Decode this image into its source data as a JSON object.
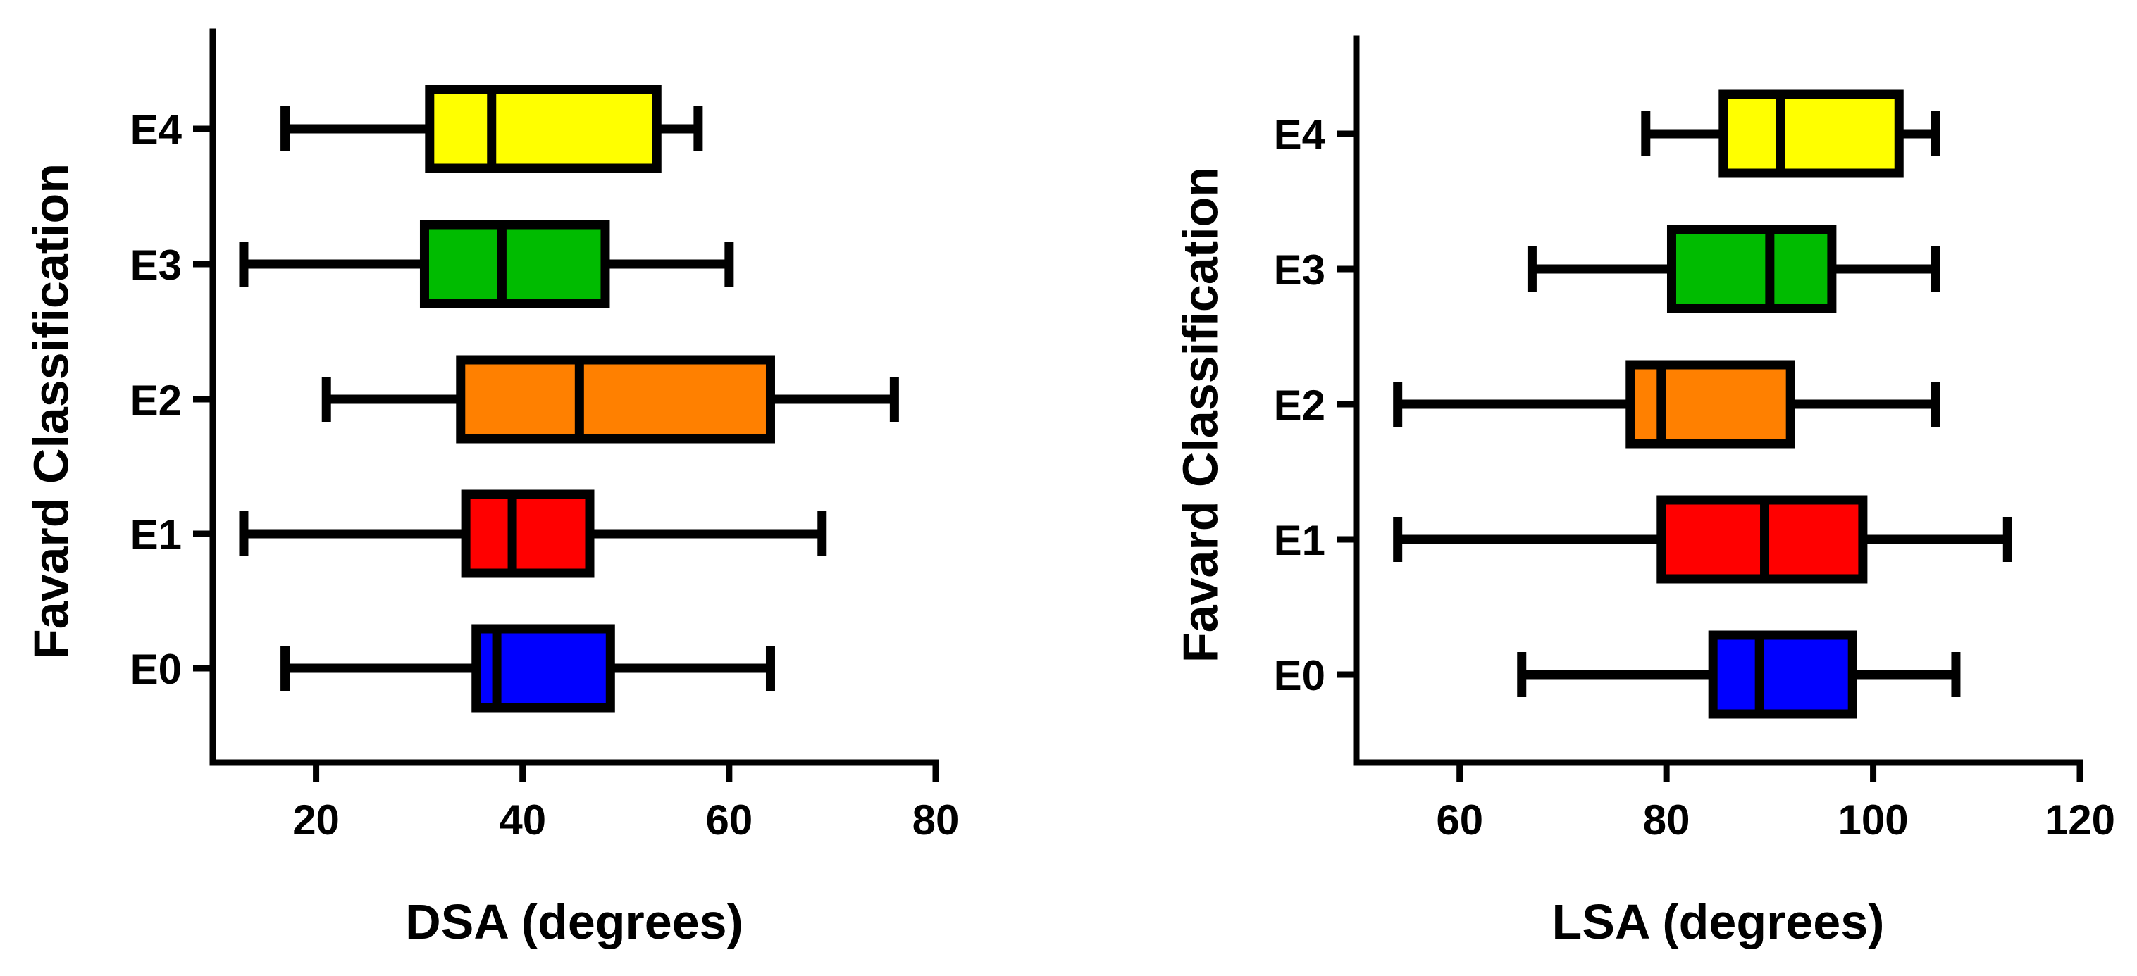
{
  "chart_data": [
    {
      "type": "box",
      "orientation": "horizontal",
      "xlabel": "DSA (degrees)",
      "ylabel": "Favard Classification",
      "xlim": [
        10,
        80
      ],
      "xticks": [
        20,
        40,
        60,
        80
      ],
      "categories": [
        "E4",
        "E3",
        "E2",
        "E1",
        "E0"
      ],
      "series": [
        {
          "name": "E4",
          "color": "#ffff00",
          "min": 17,
          "q1": 31,
          "median": 37,
          "q3": 53,
          "max": 57
        },
        {
          "name": "E3",
          "color": "#00bb00",
          "min": 13,
          "q1": 30.5,
          "median": 38,
          "q3": 48,
          "max": 60
        },
        {
          "name": "E2",
          "color": "#ff8000",
          "min": 21,
          "q1": 34,
          "median": 45.5,
          "q3": 64,
          "max": 76
        },
        {
          "name": "E1",
          "color": "#ff0000",
          "min": 13,
          "q1": 34.5,
          "median": 39,
          "q3": 46.5,
          "max": 69
        },
        {
          "name": "E0",
          "color": "#0000ff",
          "min": 17,
          "q1": 35.5,
          "median": 37.5,
          "q3": 48.5,
          "max": 64
        }
      ]
    },
    {
      "type": "box",
      "orientation": "horizontal",
      "xlabel": "LSA (degrees)",
      "ylabel": "Favard Classification",
      "xlim": [
        50,
        120
      ],
      "xticks": [
        60,
        80,
        100,
        120
      ],
      "categories": [
        "E4",
        "E3",
        "E2",
        "E1",
        "E0"
      ],
      "series": [
        {
          "name": "E4",
          "color": "#ffff00",
          "min": 78,
          "q1": 85.5,
          "median": 91,
          "q3": 102.5,
          "max": 106
        },
        {
          "name": "E3",
          "color": "#00bb00",
          "min": 67,
          "q1": 80.5,
          "median": 90,
          "q3": 96,
          "max": 106
        },
        {
          "name": "E2",
          "color": "#ff8000",
          "min": 54,
          "q1": 76.5,
          "median": 79.5,
          "q3": 92,
          "max": 106
        },
        {
          "name": "E1",
          "color": "#ff0000",
          "min": 54,
          "q1": 79.5,
          "median": 89.5,
          "q3": 99,
          "max": 113
        },
        {
          "name": "E0",
          "color": "#0000ff",
          "min": 66,
          "q1": 84.5,
          "median": 89,
          "q3": 98,
          "max": 108
        }
      ]
    }
  ]
}
